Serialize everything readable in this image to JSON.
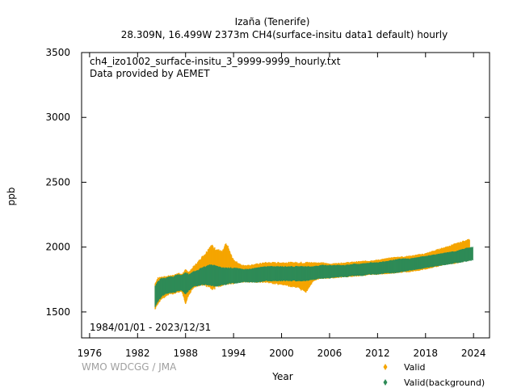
{
  "header": {
    "station": "Izaña (Tenerife)",
    "subtitle": "28.309N, 16.499W 2373m    CH4(surface-insitu data1 default) hourly"
  },
  "plot_info": {
    "filename": "ch4_izo1002_surface-insitu_3_9999-9999_hourly.txt",
    "provider": "Data provided by AEMET",
    "date_range": "1984/01/01 - 2023/12/31"
  },
  "credit": "WMO WDCGG / JMA",
  "colors": {
    "valid": "#f5a500",
    "background": "#2e8b57"
  },
  "chart_data": {
    "type": "scatter",
    "xlabel": "Year",
    "ylabel": "ppb",
    "xlim": [
      1975,
      2026
    ],
    "ylim": [
      1300,
      3500
    ],
    "xticks": [
      1976,
      1982,
      1988,
      1994,
      2000,
      2006,
      2012,
      2018,
      2024
    ],
    "yticks": [
      1500,
      2000,
      2500,
      3000,
      3500
    ],
    "legend_position": "bottom-right",
    "series": [
      {
        "name": "Valid",
        "color": "#f5a500",
        "marker": "diamond",
        "x": [
          1984.2,
          1984.5,
          1985.0,
          1985.5,
          1986.0,
          1986.5,
          1987.0,
          1987.5,
          1988.0,
          1988.5,
          1989.0,
          1989.5,
          1990.0,
          1990.5,
          1991.0,
          1991.3,
          1991.6,
          1992.0,
          1992.3,
          1992.6,
          1993.0,
          1993.3,
          1993.6,
          1994.0,
          1994.5,
          1995.0,
          1996.0,
          1997.0,
          1998.0,
          1999.0,
          2000.0,
          2001.0,
          2002.0,
          2003.0,
          2004.0,
          2005.0,
          2006.0,
          2008.0,
          2010.0,
          2012.0,
          2014.0,
          2016.0,
          2018.0,
          2020.0,
          2022.0,
          2023.5
        ],
        "y_max": [
          1720,
          1760,
          1770,
          1770,
          1780,
          1780,
          1800,
          1790,
          1820,
          1810,
          1850,
          1880,
          1920,
          1950,
          2000,
          2010,
          1990,
          1980,
          1970,
          1960,
          2020,
          2000,
          1950,
          1900,
          1880,
          1860,
          1860,
          1870,
          1880,
          1880,
          1880,
          1880,
          1880,
          1880,
          1880,
          1880,
          1870,
          1880,
          1890,
          1900,
          1920,
          1930,
          1950,
          1990,
          2030,
          2060
        ],
        "y_min": [
          1520,
          1560,
          1600,
          1620,
          1640,
          1640,
          1650,
          1660,
          1570,
          1640,
          1690,
          1700,
          1710,
          1700,
          1690,
          1680,
          1680,
          1700,
          1700,
          1710,
          1720,
          1720,
          1720,
          1720,
          1730,
          1730,
          1730,
          1730,
          1730,
          1720,
          1710,
          1700,
          1690,
          1650,
          1740,
          1760,
          1760,
          1770,
          1780,
          1790,
          1800,
          1810,
          1830,
          1860,
          1880,
          1900
        ]
      },
      {
        "name": "Valid(background)",
        "color": "#2e8b57",
        "marker": "diamond",
        "x": [
          1984.2,
          1984.5,
          1985.0,
          1985.5,
          1986.0,
          1986.5,
          1987.0,
          1987.5,
          1988.0,
          1988.5,
          1989.0,
          1989.5,
          1990.0,
          1990.5,
          1991.0,
          1991.5,
          1992.0,
          1992.5,
          1993.0,
          1993.5,
          1994.0,
          1995.0,
          1996.0,
          1997.0,
          1998.0,
          1999.0,
          2000.0,
          2001.0,
          2002.0,
          2003.0,
          2004.0,
          2005.0,
          2006.0,
          2007.0,
          2008.0,
          2009.0,
          2010.0,
          2011.0,
          2012.0,
          2013.0,
          2014.0,
          2015.0,
          2016.0,
          2017.0,
          2018.0,
          2019.0,
          2020.0,
          2021.0,
          2022.0,
          2023.0,
          2023.9
        ],
        "y_max": [
          1700,
          1730,
          1760,
          1760,
          1770,
          1770,
          1790,
          1780,
          1800,
          1790,
          1810,
          1820,
          1840,
          1850,
          1860,
          1860,
          1850,
          1840,
          1840,
          1840,
          1840,
          1830,
          1830,
          1840,
          1850,
          1850,
          1850,
          1850,
          1850,
          1850,
          1850,
          1860,
          1860,
          1860,
          1860,
          1870,
          1870,
          1880,
          1880,
          1890,
          1900,
          1910,
          1910,
          1920,
          1930,
          1940,
          1950,
          1960,
          1970,
          1990,
          2000
        ],
        "y_min": [
          1540,
          1580,
          1620,
          1640,
          1650,
          1650,
          1660,
          1670,
          1640,
          1670,
          1700,
          1700,
          1710,
          1710,
          1710,
          1700,
          1700,
          1710,
          1710,
          1720,
          1720,
          1730,
          1730,
          1730,
          1740,
          1740,
          1740,
          1740,
          1740,
          1740,
          1750,
          1760,
          1760,
          1770,
          1770,
          1780,
          1780,
          1790,
          1790,
          1800,
          1800,
          1810,
          1820,
          1830,
          1840,
          1850,
          1860,
          1870,
          1880,
          1890,
          1900
        ]
      }
    ]
  }
}
